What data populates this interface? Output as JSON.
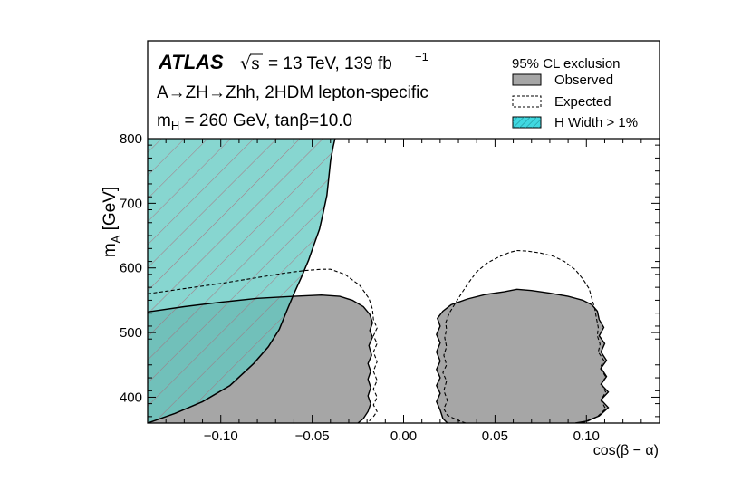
{
  "chart_data": {
    "type": "area",
    "experiment": "ATLAS",
    "energy_text": "= 13 TeV, 139 fb",
    "sqrt_symbol": "√s",
    "lumi_exponent": "−1",
    "process": "A→ZH→Zhh, 2HDM lepton-specific",
    "parameters": "m",
    "parameters_sub": "H",
    "parameters_rest": " = 260 GeV, tanβ=10.0",
    "xlabel": "cos(β − α)",
    "ylabel_main": "m",
    "ylabel_sub": "A",
    "ylabel_unit": " [GeV]",
    "xlim": [
      -0.14,
      0.14
    ],
    "ylim": [
      360,
      800
    ],
    "x_ticks": [
      -0.1,
      -0.05,
      0.0,
      0.05,
      0.1
    ],
    "x_tick_labels": [
      "−0.10",
      "−0.05",
      "0.00",
      "0.05",
      "0.10"
    ],
    "y_ticks": [
      400,
      500,
      600,
      700,
      800
    ],
    "y_tick_labels": [
      "400",
      "500",
      "600",
      "700",
      "800"
    ],
    "legend": {
      "title": "95% CL exclusion",
      "observed": "Observed",
      "expected": "Expected",
      "width": "H Width > 1%"
    },
    "colors": {
      "observed": "#a6a6a6",
      "width_fill": "#5fc8c0",
      "hatch": "#b06070",
      "legend_width": "#40d8e0"
    },
    "series": [
      {
        "name": "Observed",
        "regions": [
          [
            [
              -0.14,
              360
            ],
            [
              -0.14,
              532
            ],
            [
              -0.12,
              540
            ],
            [
              -0.1,
              547
            ],
            [
              -0.08,
              553
            ],
            [
              -0.06,
              556
            ],
            [
              -0.045,
              558
            ],
            [
              -0.035,
              556
            ],
            [
              -0.028,
              550
            ],
            [
              -0.022,
              540
            ],
            [
              -0.0185,
              528
            ],
            [
              -0.017,
              515
            ],
            [
              -0.0185,
              503
            ],
            [
              -0.017,
              493
            ],
            [
              -0.019,
              480
            ],
            [
              -0.0175,
              465
            ],
            [
              -0.0195,
              452
            ],
            [
              -0.018,
              440
            ],
            [
              -0.0195,
              428
            ],
            [
              -0.018,
              415
            ],
            [
              -0.0195,
              402
            ],
            [
              -0.018,
              390
            ],
            [
              -0.0195,
              378
            ],
            [
              -0.022,
              367
            ],
            [
              -0.025,
              360
            ]
          ],
          [
            [
              0.024,
              360
            ],
            [
              0.0215,
              367
            ],
            [
              0.02,
              380
            ],
            [
              0.018,
              393
            ],
            [
              0.02,
              406
            ],
            [
              0.018,
              418
            ],
            [
              0.02,
              430
            ],
            [
              0.018,
              443
            ],
            [
              0.02,
              456
            ],
            [
              0.018,
              470
            ],
            [
              0.02,
              484
            ],
            [
              0.018,
              497
            ],
            [
              0.02,
              510
            ],
            [
              0.0185,
              522
            ],
            [
              0.0215,
              533
            ],
            [
              0.026,
              543
            ],
            [
              0.035,
              552
            ],
            [
              0.045,
              559
            ],
            [
              0.055,
              563
            ],
            [
              0.062,
              567
            ],
            [
              0.07,
              565
            ],
            [
              0.08,
              561
            ],
            [
              0.09,
              556
            ],
            [
              0.098,
              550
            ],
            [
              0.103,
              543
            ],
            [
              0.106,
              533
            ],
            [
              0.107,
              520
            ],
            [
              0.1095,
              508
            ],
            [
              0.107,
              495
            ],
            [
              0.11,
              483
            ],
            [
              0.108,
              470
            ],
            [
              0.111,
              457
            ],
            [
              0.108,
              445
            ],
            [
              0.111,
              432
            ],
            [
              0.108,
              420
            ],
            [
              0.112,
              408
            ],
            [
              0.108,
              396
            ],
            [
              0.112,
              384
            ],
            [
              0.107,
              371
            ],
            [
              0.1,
              363
            ],
            [
              0.094,
              360
            ]
          ]
        ]
      },
      {
        "name": "Expected",
        "lines": [
          [
            [
              -0.14,
              560
            ],
            [
              -0.12,
              568
            ],
            [
              -0.1,
              576
            ],
            [
              -0.08,
              585
            ],
            [
              -0.065,
              592
            ],
            [
              -0.054,
              596
            ],
            [
              -0.045,
              598
            ],
            [
              -0.04,
              598
            ],
            [
              -0.032,
              590
            ],
            [
              -0.024,
              573
            ],
            [
              -0.019,
              553
            ],
            [
              -0.017,
              536
            ],
            [
              -0.0165,
              520
            ],
            [
              -0.0145,
              507
            ],
            [
              -0.0165,
              495
            ],
            [
              -0.0145,
              483
            ],
            [
              -0.0165,
              470
            ],
            [
              -0.0145,
              455
            ],
            [
              -0.0165,
              440
            ],
            [
              -0.0145,
              426
            ],
            [
              -0.0165,
              413
            ],
            [
              -0.0145,
              400
            ],
            [
              -0.0165,
              388
            ],
            [
              -0.0145,
              378
            ],
            [
              -0.017,
              368
            ],
            [
              -0.02,
              360
            ]
          ],
          [
            [
              0.034,
              360
            ],
            [
              0.029,
              365
            ],
            [
              0.024,
              372
            ],
            [
              0.022,
              382
            ],
            [
              0.024,
              395
            ],
            [
              0.022,
              410
            ],
            [
              0.0235,
              425
            ],
            [
              0.0215,
              438
            ],
            [
              0.0235,
              450
            ],
            [
              0.022,
              465
            ],
            [
              0.0235,
              478
            ],
            [
              0.0225,
              492
            ],
            [
              0.0235,
              505
            ],
            [
              0.023,
              515
            ],
            [
              0.025,
              530
            ],
            [
              0.03,
              553
            ],
            [
              0.035,
              575
            ],
            [
              0.04,
              594
            ],
            [
              0.046,
              608
            ],
            [
              0.052,
              617
            ],
            [
              0.058,
              624
            ],
            [
              0.062,
              627
            ],
            [
              0.068,
              626
            ],
            [
              0.075,
              623
            ],
            [
              0.082,
              618
            ],
            [
              0.088,
              610
            ],
            [
              0.094,
              597
            ],
            [
              0.098,
              583
            ],
            [
              0.1015,
              568
            ],
            [
              0.103,
              553
            ],
            [
              0.1045,
              538
            ],
            [
              0.1055,
              522
            ],
            [
              0.1065,
              508
            ],
            [
              0.106,
              495
            ],
            [
              0.1075,
              482
            ],
            [
              0.1065,
              470
            ],
            [
              0.1095,
              457
            ],
            [
              0.1075,
              445
            ],
            [
              0.1105,
              432
            ],
            [
              0.1085,
              420
            ],
            [
              0.1105,
              408
            ],
            [
              0.108,
              395
            ],
            [
              0.1105,
              382
            ],
            [
              0.106,
              370
            ],
            [
              0.1,
              362
            ],
            [
              0.095,
              360
            ]
          ]
        ]
      },
      {
        "name": "H Width > 1%",
        "boundary": [
          [
            -0.14,
            360
          ],
          [
            -0.125,
            375
          ],
          [
            -0.11,
            393
          ],
          [
            -0.095,
            418
          ],
          [
            -0.082,
            452
          ],
          [
            -0.074,
            478
          ],
          [
            -0.068,
            505
          ],
          [
            -0.064,
            533
          ],
          [
            -0.06,
            560
          ],
          [
            -0.056,
            585
          ],
          [
            -0.052,
            612
          ],
          [
            -0.049,
            636
          ],
          [
            -0.046,
            660
          ],
          [
            -0.044,
            685
          ],
          [
            -0.042,
            712
          ],
          [
            -0.041,
            738
          ],
          [
            -0.04,
            765
          ],
          [
            -0.0385,
            788
          ],
          [
            -0.0375,
            800
          ]
        ]
      }
    ]
  }
}
